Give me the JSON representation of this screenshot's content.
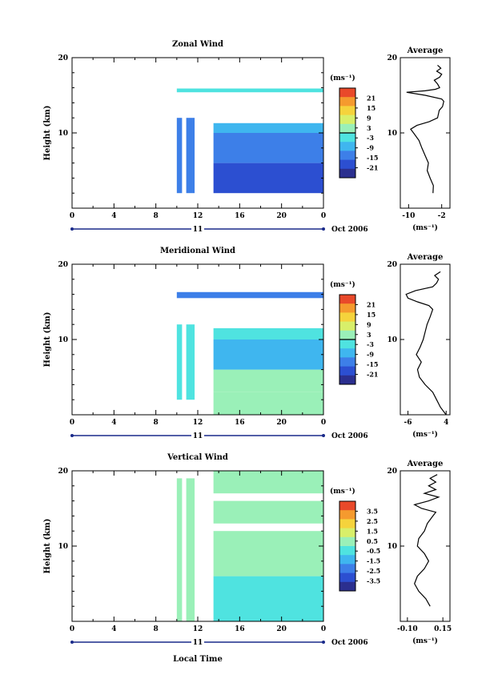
{
  "chart_data": [
    {
      "type": "heatmap",
      "title": "Zonal Wind",
      "ylabel": "Height (km)",
      "xlabel": "",
      "x_ticks": [
        "0",
        "4",
        "8",
        "12",
        "16",
        "20",
        "0"
      ],
      "y_ticks": [
        "10",
        "20"
      ],
      "xlim": [
        0,
        24
      ],
      "ylim": [
        0,
        20
      ],
      "date_label": "11",
      "month_label": "Oct 2006",
      "colorbar": {
        "unit_label": "(ms⁻¹)",
        "ticks": [
          "21",
          "15",
          "9",
          "3",
          "-3",
          "-9",
          "-15",
          "-21"
        ],
        "range": [
          -24,
          24
        ],
        "zero_line": 0
      },
      "profile": {
        "title": "Average",
        "xlabel": "(ms⁻¹)",
        "x_ticks": [
          "-10",
          "-2"
        ],
        "x_tick_values": [
          -10,
          -2
        ],
        "xlim": [
          -12,
          0
        ],
        "y_ticks": [
          "10",
          "20"
        ],
        "points": [
          [
            -4.1,
            2
          ],
          [
            -4.0,
            3
          ],
          [
            -4.8,
            4
          ],
          [
            -5.5,
            5
          ],
          [
            -5.2,
            6
          ],
          [
            -6.0,
            7
          ],
          [
            -6.8,
            8
          ],
          [
            -7.5,
            9
          ],
          [
            -8.8,
            10
          ],
          [
            -9.5,
            10.5
          ],
          [
            -8.0,
            11
          ],
          [
            -5.0,
            11.5
          ],
          [
            -3.0,
            12
          ],
          [
            -2.6,
            13
          ],
          [
            -1.8,
            13.5
          ],
          [
            -1.5,
            14.2
          ],
          [
            -2.0,
            14.5
          ],
          [
            -6.0,
            15
          ],
          [
            -10.5,
            15.4
          ],
          [
            -6.0,
            15.6
          ],
          [
            -3.5,
            15.8
          ],
          [
            -2.5,
            16
          ],
          [
            -3.0,
            16.5
          ],
          [
            -3.8,
            17
          ],
          [
            -2.5,
            17.4
          ],
          [
            -2.0,
            17.8
          ],
          [
            -3.2,
            18.2
          ],
          [
            -2.2,
            18.6
          ],
          [
            -3.0,
            19
          ]
        ]
      },
      "cells": [
        {
          "x0": 10,
          "x1": 10.5,
          "y0": 2,
          "y1": 12,
          "v": -12
        },
        {
          "x0": 10.9,
          "x1": 11.7,
          "y0": 2,
          "y1": 12,
          "v": -10
        },
        {
          "x0": 13.5,
          "x1": 24,
          "y0": 2,
          "y1": 6,
          "v": -15
        },
        {
          "x0": 13.5,
          "x1": 24,
          "y0": 6,
          "y1": 10,
          "v": -13
        },
        {
          "x0": 13.5,
          "x1": 24,
          "y0": 10,
          "y1": 11.3,
          "v": -6
        },
        {
          "x0": 10,
          "x1": 24,
          "y0": 15.4,
          "y1": 15.9,
          "v": -4
        }
      ]
    },
    {
      "type": "heatmap",
      "title": "Meridional Wind",
      "ylabel": "Height (km)",
      "xlabel": "",
      "x_ticks": [
        "0",
        "4",
        "8",
        "12",
        "16",
        "20",
        "0"
      ],
      "y_ticks": [
        "10",
        "20"
      ],
      "xlim": [
        0,
        24
      ],
      "ylim": [
        0,
        20
      ],
      "date_label": "11",
      "month_label": "Oct 2006",
      "colorbar": {
        "unit_label": "(ms⁻¹)",
        "ticks": [
          "21",
          "15",
          "9",
          "3",
          "-3",
          "-9",
          "-15",
          "-21"
        ],
        "range": [
          -24,
          24
        ],
        "zero_line": 0
      },
      "profile": {
        "title": "Average",
        "xlabel": "(ms⁻¹)",
        "x_ticks": [
          "-6",
          "4"
        ],
        "x_tick_values": [
          -6,
          4
        ],
        "xlim": [
          -8,
          5
        ],
        "y_ticks": [
          "10",
          "20"
        ],
        "points": [
          [
            4.0,
            0
          ],
          [
            2.5,
            1
          ],
          [
            1.5,
            2
          ],
          [
            0.5,
            3
          ],
          [
            -1.5,
            4
          ],
          [
            -3.0,
            5
          ],
          [
            -3.5,
            6
          ],
          [
            -2.5,
            7
          ],
          [
            -3.8,
            8
          ],
          [
            -2.8,
            9
          ],
          [
            -2.0,
            10
          ],
          [
            -1.5,
            11
          ],
          [
            -1.0,
            12
          ],
          [
            -0.2,
            13
          ],
          [
            0.5,
            14
          ],
          [
            -0.5,
            14.5
          ],
          [
            -3.5,
            15
          ],
          [
            -6.0,
            15.5
          ],
          [
            -6.5,
            16
          ],
          [
            -4.0,
            16.5
          ],
          [
            0.5,
            17
          ],
          [
            1.5,
            17.5
          ],
          [
            2.0,
            18
          ],
          [
            1.0,
            18.5
          ],
          [
            2.5,
            19
          ]
        ]
      },
      "cells": [
        {
          "x0": 10,
          "x1": 10.5,
          "y0": 2,
          "y1": 12,
          "v": -4
        },
        {
          "x0": 10.9,
          "x1": 11.7,
          "y0": 2,
          "y1": 12,
          "v": -3
        },
        {
          "x0": 13.5,
          "x1": 24,
          "y0": 0,
          "y1": 3,
          "v": 3
        },
        {
          "x0": 13.5,
          "x1": 24,
          "y0": 3,
          "y1": 6,
          "v": 0
        },
        {
          "x0": 13.5,
          "x1": 24,
          "y0": 6,
          "y1": 10,
          "v": -5
        },
        {
          "x0": 13.5,
          "x1": 24,
          "y0": 10,
          "y1": 11.5,
          "v": -2
        },
        {
          "x0": 10,
          "x1": 24,
          "y0": 15.5,
          "y1": 16.3,
          "v": -10
        }
      ]
    },
    {
      "type": "heatmap",
      "title": "Vertical Wind",
      "ylabel": "Height (km)",
      "xlabel": "Local Time",
      "x_ticks": [
        "0",
        "4",
        "8",
        "12",
        "16",
        "20",
        "0"
      ],
      "y_ticks": [
        "10",
        "20"
      ],
      "xlim": [
        0,
        24
      ],
      "ylim": [
        0,
        20
      ],
      "date_label": "11",
      "month_label": "Oct 2006",
      "colorbar": {
        "unit_label": "(ms⁻¹)",
        "ticks": [
          "3.5",
          "2.5",
          "1.5",
          "0.5",
          "-0.5",
          "-1.5",
          "-2.5",
          "-3.5"
        ],
        "range": [
          -4,
          4
        ]
      },
      "profile": {
        "title": "Average",
        "xlabel": "(ms⁻¹)",
        "x_ticks": [
          "-0.10",
          "0.15"
        ],
        "x_tick_values": [
          -0.1,
          0.15
        ],
        "xlim": [
          -0.15,
          0.2
        ],
        "y_ticks": [
          "10",
          "20"
        ],
        "points": [
          [
            0.06,
            2
          ],
          [
            0.03,
            3
          ],
          [
            -0.02,
            4
          ],
          [
            -0.05,
            5
          ],
          [
            -0.03,
            6
          ],
          [
            0.02,
            7
          ],
          [
            0.05,
            8
          ],
          [
            0.02,
            9
          ],
          [
            -0.03,
            10
          ],
          [
            -0.02,
            11
          ],
          [
            0.02,
            12
          ],
          [
            0.04,
            13
          ],
          [
            0.08,
            14
          ],
          [
            0.1,
            14.5
          ],
          [
            0.0,
            15
          ],
          [
            -0.05,
            15.5
          ],
          [
            0.05,
            16
          ],
          [
            0.12,
            16.5
          ],
          [
            0.02,
            17
          ],
          [
            0.1,
            17.5
          ],
          [
            0.05,
            18
          ],
          [
            0.1,
            18.5
          ],
          [
            0.06,
            19
          ],
          [
            0.11,
            19.5
          ]
        ]
      },
      "cells": [
        {
          "x0": 10,
          "x1": 10.5,
          "y0": 0,
          "y1": 19,
          "v": 0.3
        },
        {
          "x0": 10.9,
          "x1": 11.7,
          "y0": 0,
          "y1": 19,
          "v": 0.5
        },
        {
          "x0": 13.5,
          "x1": 24,
          "y0": 0,
          "y1": 6,
          "v": -0.2
        },
        {
          "x0": 13.5,
          "x1": 24,
          "y0": 6,
          "y1": 12,
          "v": 0.1
        },
        {
          "x0": 13.5,
          "x1": 24,
          "y0": 13,
          "y1": 16,
          "v": 0.4
        },
        {
          "x0": 13.5,
          "x1": 24,
          "y0": 17,
          "y1": 20,
          "v": 0.2
        }
      ]
    }
  ]
}
